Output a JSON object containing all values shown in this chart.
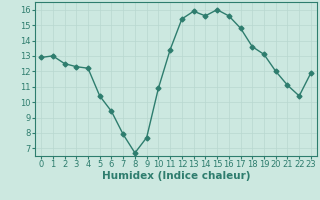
{
  "x": [
    0,
    1,
    2,
    3,
    4,
    5,
    6,
    7,
    8,
    9,
    10,
    11,
    12,
    13,
    14,
    15,
    16,
    17,
    18,
    19,
    20,
    21,
    22,
    23
  ],
  "y": [
    12.9,
    13.0,
    12.5,
    12.3,
    12.2,
    10.4,
    9.4,
    7.9,
    6.7,
    7.7,
    10.9,
    13.4,
    15.4,
    15.9,
    15.6,
    16.0,
    15.6,
    14.8,
    13.6,
    13.1,
    12.0,
    11.1,
    10.4,
    11.9
  ],
  "line_color": "#2e7d6e",
  "bg_color": "#cce8e0",
  "grid_color": "#b8d8d0",
  "xlabel": "Humidex (Indice chaleur)",
  "xlim": [
    -0.5,
    23.5
  ],
  "ylim": [
    6.5,
    16.5
  ],
  "yticks": [
    7,
    8,
    9,
    10,
    11,
    12,
    13,
    14,
    15,
    16
  ],
  "xticks": [
    0,
    1,
    2,
    3,
    4,
    5,
    6,
    7,
    8,
    9,
    10,
    11,
    12,
    13,
    14,
    15,
    16,
    17,
    18,
    19,
    20,
    21,
    22,
    23
  ],
  "marker": "D",
  "marker_size": 2.5,
  "line_width": 1.0,
  "xlabel_fontsize": 7.5,
  "tick_fontsize": 6.0
}
